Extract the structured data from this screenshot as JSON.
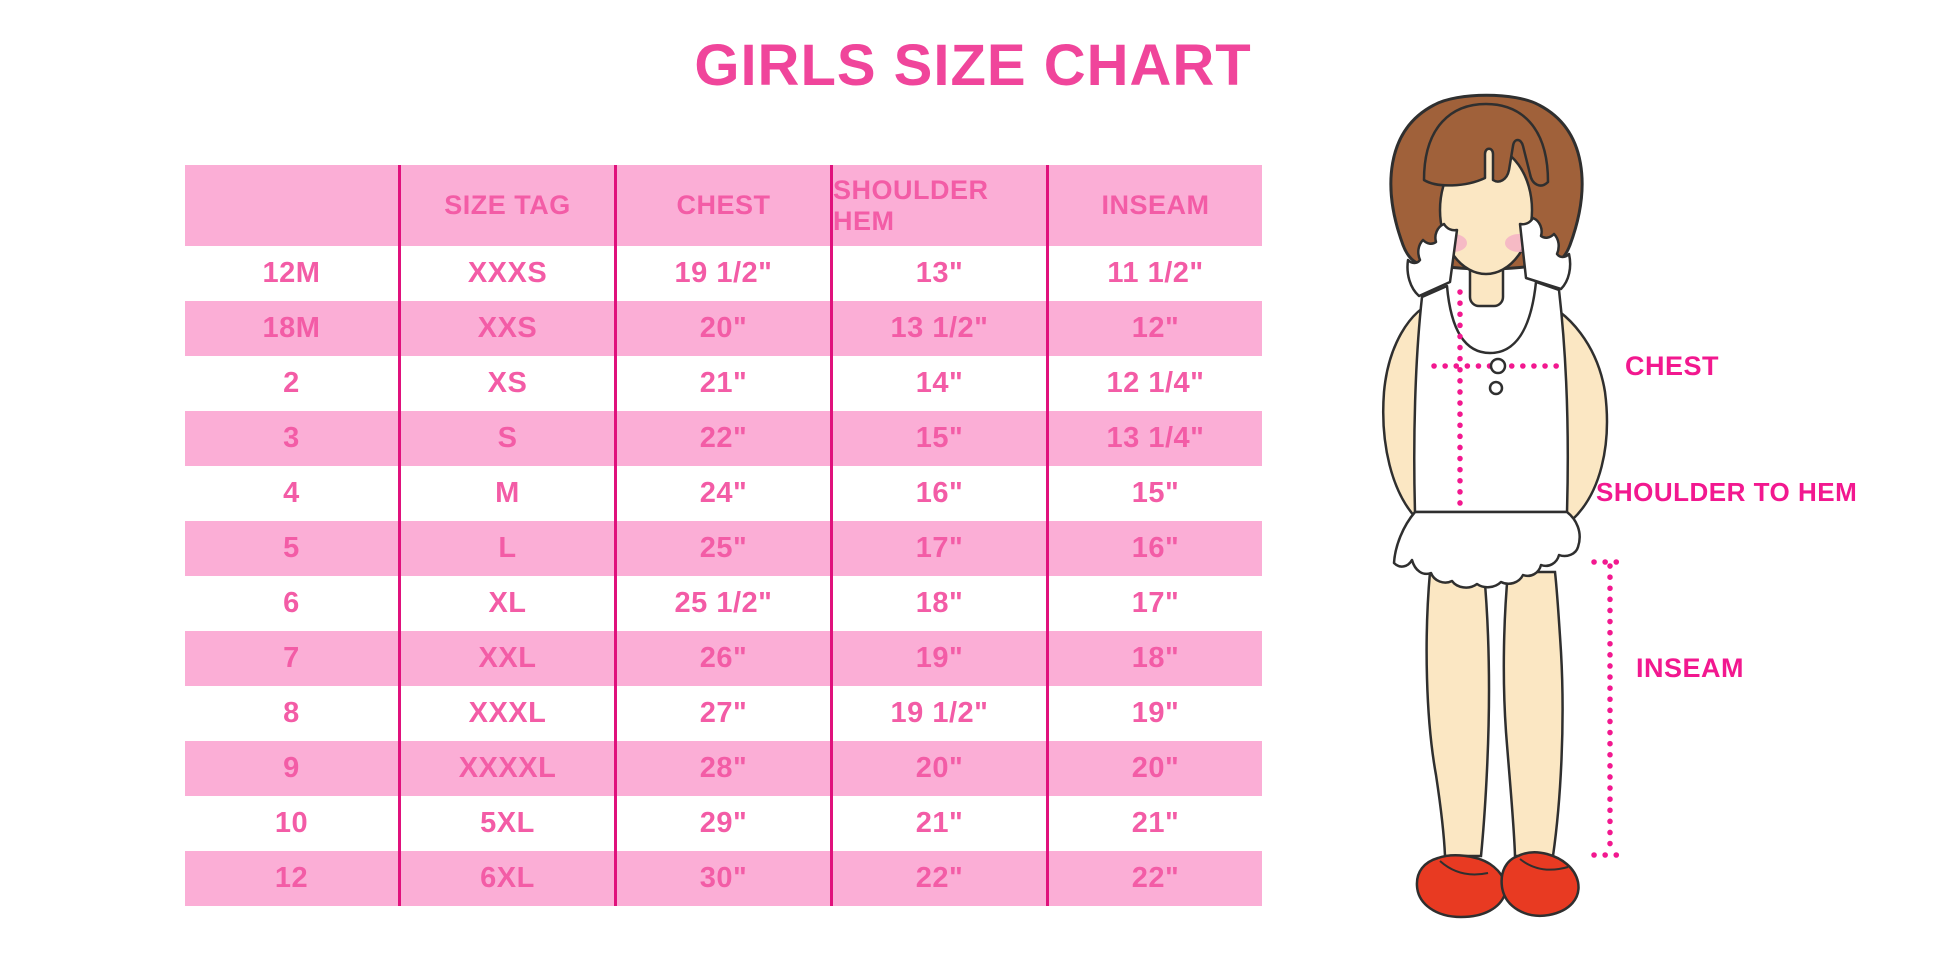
{
  "title": "GIRLS SIZE CHART",
  "chart_data": {
    "type": "table",
    "title": "GIRLS SIZE CHART",
    "columns": [
      "",
      "SIZE TAG",
      "CHEST",
      "SHOULDER HEM",
      "INSEAM"
    ],
    "rows": [
      [
        "12M",
        "XXXS",
        "19 1/2\"",
        "13\"",
        "11 1/2\""
      ],
      [
        "18M",
        "XXS",
        "20\"",
        "13 1/2\"",
        "12\""
      ],
      [
        "2",
        "XS",
        "21\"",
        "14\"",
        "12 1/4\""
      ],
      [
        "3",
        "S",
        "22\"",
        "15\"",
        "13 1/4\""
      ],
      [
        "4",
        "M",
        "24\"",
        "16\"",
        "15\""
      ],
      [
        "5",
        "L",
        "25\"",
        "17\"",
        "16\""
      ],
      [
        "6",
        "XL",
        "25 1/2\"",
        "18\"",
        "17\""
      ],
      [
        "7",
        "XXL",
        "26\"",
        "19\"",
        "18\""
      ],
      [
        "8",
        "XXXL",
        "27\"",
        "19 1/2\"",
        "19\""
      ],
      [
        "9",
        "XXXXL",
        "28\"",
        "20\"",
        "20\""
      ],
      [
        "10",
        "5XL",
        "29\"",
        "21\"",
        "21\""
      ],
      [
        "12",
        "6XL",
        "30\"",
        "22\"",
        "22\""
      ]
    ],
    "row_striping": "odd rows white, even rows pink, header pink",
    "legend_position": "none",
    "grid": "vertical magenta separators only"
  },
  "figure": {
    "description": "illustration of girl with bob haircut, white ruffled top, red shoes, dotted measurement guides",
    "labels": {
      "chest": "CHEST",
      "shoulder_to_hem": "SHOULDER TO HEM",
      "inseam": "INSEAM"
    }
  },
  "colors": {
    "title_pink": "#F0459B",
    "row_pink": "#FBAED6",
    "table_text": "#F35CA6",
    "separator": "#E0117C",
    "label_magenta": "#F2188F",
    "hair_brown": "#A0613A",
    "skin": "#FBE7C3",
    "shoe_red": "#E83A22"
  }
}
